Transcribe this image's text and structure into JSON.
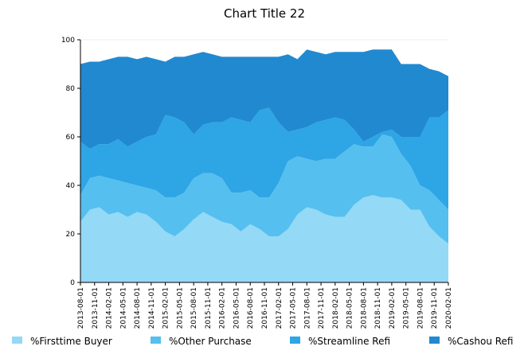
{
  "chart_data": {
    "type": "area",
    "stacked": true,
    "title": "Chart Title 22",
    "xlabel": "",
    "ylabel": "",
    "ylim": [
      0,
      100
    ],
    "yticks": [
      0,
      20,
      40,
      60,
      80,
      100
    ],
    "grid": false,
    "legend": "bottom",
    "x_tick_labels": [
      "2013-08-01",
      "2013-11-01",
      "2014-02-01",
      "2014-05-01",
      "2014-08-01",
      "2014-11-01",
      "2015-02-01",
      "2015-05-01",
      "2015-08-01",
      "2015-11-01",
      "2016-02-01",
      "2016-05-01",
      "2016-08-01",
      "2016-11-01",
      "2017-02-01",
      "2017-05-01",
      "2017-08-01",
      "2017-11-01",
      "2018-02-01",
      "2018-05-01",
      "2018-08-01",
      "2018-11-01",
      "2019-02-01",
      "2019-05-01",
      "2019-08-01",
      "2019-11-01",
      "2020-02-01"
    ],
    "x": [
      "2013-08-01",
      "2013-10-01",
      "2013-12-01",
      "2014-02-01",
      "2014-04-01",
      "2014-06-01",
      "2014-08-01",
      "2014-10-01",
      "2014-12-01",
      "2015-02-01",
      "2015-04-01",
      "2015-06-01",
      "2015-08-01",
      "2015-10-01",
      "2015-12-01",
      "2016-02-01",
      "2016-04-01",
      "2016-06-01",
      "2016-08-01",
      "2016-10-01",
      "2016-12-01",
      "2017-02-01",
      "2017-04-01",
      "2017-06-01",
      "2017-08-01",
      "2017-10-01",
      "2017-12-01",
      "2018-02-01",
      "2018-04-01",
      "2018-06-01",
      "2018-08-01",
      "2018-10-01",
      "2018-12-01",
      "2019-02-01",
      "2019-04-01",
      "2019-06-01",
      "2019-08-01",
      "2019-10-01",
      "2019-12-01",
      "2020-02-01"
    ],
    "series": [
      {
        "name": "%Firsttime Buyer",
        "color": "#94d9f5",
        "values": [
          25,
          30,
          31,
          28,
          29,
          27,
          29,
          28,
          25,
          21,
          19,
          22,
          26,
          29,
          27,
          25,
          24,
          21,
          24,
          22,
          19,
          19,
          22,
          28,
          31,
          30,
          28,
          27,
          27,
          32,
          35,
          36,
          35,
          35,
          34,
          30,
          30,
          23,
          19,
          16
        ]
      },
      {
        "name": "%Other Purchase",
        "color": "#55bfef",
        "values": [
          11,
          13,
          13,
          15,
          13,
          14,
          11,
          11,
          13,
          14,
          16,
          15,
          17,
          16,
          18,
          18,
          13,
          16,
          14,
          13,
          16,
          22,
          28,
          24,
          20,
          20,
          23,
          24,
          27,
          25,
          21,
          20,
          26,
          25,
          19,
          18,
          10,
          15,
          15,
          14
        ]
      },
      {
        "name": "%Streamline Refi",
        "color": "#2ea5e5",
        "values": [
          22,
          12,
          13,
          14,
          17,
          15,
          18,
          21,
          23,
          34,
          33,
          29,
          18,
          20,
          21,
          23,
          31,
          30,
          28,
          36,
          37,
          25,
          12,
          11,
          13,
          16,
          16,
          17,
          13,
          6,
          2,
          4,
          1,
          3,
          7,
          12,
          20,
          30,
          34,
          41
        ]
      },
      {
        "name": "%Cashou Refi",
        "color": "#2189d0",
        "values": [
          32,
          36,
          34,
          35,
          34,
          37,
          34,
          33,
          31,
          22,
          25,
          27,
          33,
          30,
          28,
          27,
          25,
          26,
          27,
          22,
          21,
          27,
          32,
          29,
          32,
          29,
          27,
          27,
          28,
          32,
          37,
          36,
          34,
          33,
          30,
          30,
          30,
          20,
          19,
          14
        ]
      }
    ]
  }
}
